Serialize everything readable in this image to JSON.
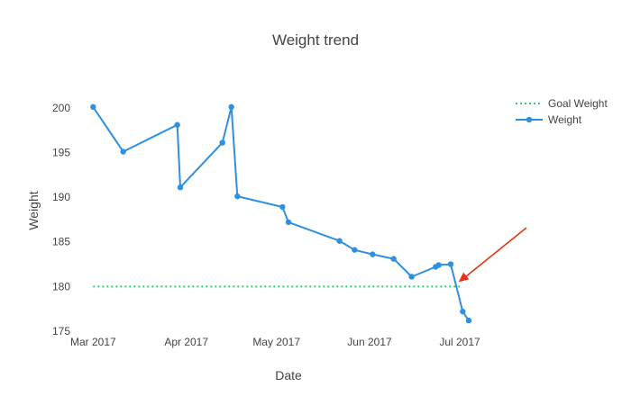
{
  "chart_data": {
    "type": "line",
    "title": "Weight trend",
    "xlabel": "Date",
    "ylabel": "Weight",
    "xlim": [
      "2017-02-28",
      "2017-07-10"
    ],
    "ylim": [
      175,
      202
    ],
    "x_ticks": [
      {
        "date": "2017-03-01",
        "label": "Mar 2017"
      },
      {
        "date": "2017-04-01",
        "label": "Apr 2017"
      },
      {
        "date": "2017-05-01",
        "label": "May 2017"
      },
      {
        "date": "2017-06-01",
        "label": "Jun 2017"
      },
      {
        "date": "2017-07-01",
        "label": "Jul 2017"
      }
    ],
    "y_ticks": [
      175,
      180,
      185,
      190,
      195,
      200
    ],
    "grid": false,
    "legend_position": "top-right",
    "series": [
      {
        "name": "Goal Weight",
        "style": "dotted",
        "color": "#2ecc71",
        "x": [
          "2017-03-01",
          "2017-07-01"
        ],
        "y": [
          180,
          180
        ]
      },
      {
        "name": "Weight",
        "style": "line+markers",
        "color": "#2f8fe0",
        "x": [
          "2017-03-01",
          "2017-03-11",
          "2017-03-29",
          "2017-03-30",
          "2017-04-13",
          "2017-04-16",
          "2017-04-18",
          "2017-05-03",
          "2017-05-05",
          "2017-05-22",
          "2017-05-27",
          "2017-06-02",
          "2017-06-09",
          "2017-06-15",
          "2017-06-23",
          "2017-06-24",
          "2017-06-28",
          "2017-07-02",
          "2017-07-04"
        ],
        "y": [
          200.1,
          195.1,
          198.1,
          191.1,
          196.1,
          200.1,
          190.1,
          188.9,
          187.2,
          185.1,
          184.1,
          183.6,
          183.1,
          181.1,
          182.2,
          182.4,
          182.5,
          177.2,
          176.2
        ]
      }
    ],
    "annotations": [
      {
        "type": "arrow",
        "color": "#e8321a",
        "points_to": {
          "x": "2017-06-30",
          "y": 180.5
        }
      }
    ]
  }
}
